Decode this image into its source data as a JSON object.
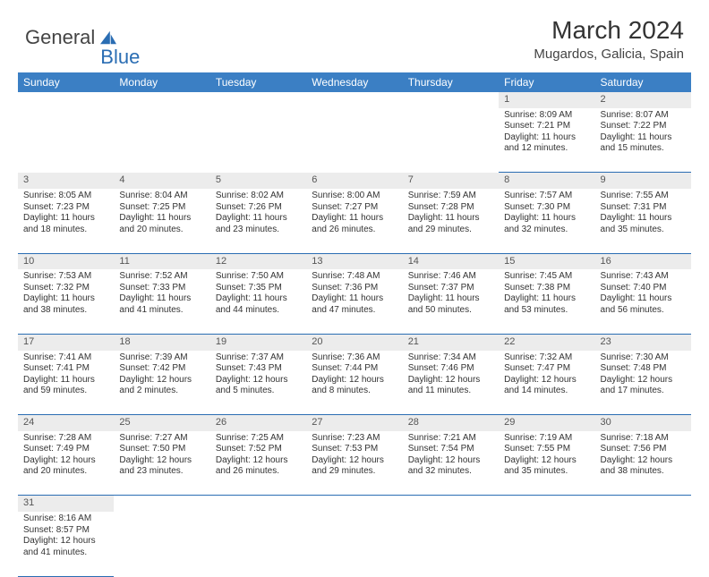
{
  "logo": {
    "text1": "General",
    "text2": "Blue"
  },
  "title": "March 2024",
  "subtitle": "Mugardos, Galicia, Spain",
  "colors": {
    "header_bg": "#3b7fc4",
    "header_text": "#ffffff",
    "daynum_bg": "#ececec",
    "row_border": "#2a6db3",
    "logo_blue": "#2a6db3",
    "body_text": "#333333"
  },
  "weekdays": [
    "Sunday",
    "Monday",
    "Tuesday",
    "Wednesday",
    "Thursday",
    "Friday",
    "Saturday"
  ],
  "weeks": [
    {
      "nums": [
        "",
        "",
        "",
        "",
        "",
        "1",
        "2"
      ],
      "cells": [
        null,
        null,
        null,
        null,
        null,
        {
          "sunrise": "Sunrise: 8:09 AM",
          "sunset": "Sunset: 7:21 PM",
          "daylight": "Daylight: 11 hours and 12 minutes."
        },
        {
          "sunrise": "Sunrise: 8:07 AM",
          "sunset": "Sunset: 7:22 PM",
          "daylight": "Daylight: 11 hours and 15 minutes."
        }
      ]
    },
    {
      "nums": [
        "3",
        "4",
        "5",
        "6",
        "7",
        "8",
        "9"
      ],
      "cells": [
        {
          "sunrise": "Sunrise: 8:05 AM",
          "sunset": "Sunset: 7:23 PM",
          "daylight": "Daylight: 11 hours and 18 minutes."
        },
        {
          "sunrise": "Sunrise: 8:04 AM",
          "sunset": "Sunset: 7:25 PM",
          "daylight": "Daylight: 11 hours and 20 minutes."
        },
        {
          "sunrise": "Sunrise: 8:02 AM",
          "sunset": "Sunset: 7:26 PM",
          "daylight": "Daylight: 11 hours and 23 minutes."
        },
        {
          "sunrise": "Sunrise: 8:00 AM",
          "sunset": "Sunset: 7:27 PM",
          "daylight": "Daylight: 11 hours and 26 minutes."
        },
        {
          "sunrise": "Sunrise: 7:59 AM",
          "sunset": "Sunset: 7:28 PM",
          "daylight": "Daylight: 11 hours and 29 minutes."
        },
        {
          "sunrise": "Sunrise: 7:57 AM",
          "sunset": "Sunset: 7:30 PM",
          "daylight": "Daylight: 11 hours and 32 minutes."
        },
        {
          "sunrise": "Sunrise: 7:55 AM",
          "sunset": "Sunset: 7:31 PM",
          "daylight": "Daylight: 11 hours and 35 minutes."
        }
      ]
    },
    {
      "nums": [
        "10",
        "11",
        "12",
        "13",
        "14",
        "15",
        "16"
      ],
      "cells": [
        {
          "sunrise": "Sunrise: 7:53 AM",
          "sunset": "Sunset: 7:32 PM",
          "daylight": "Daylight: 11 hours and 38 minutes."
        },
        {
          "sunrise": "Sunrise: 7:52 AM",
          "sunset": "Sunset: 7:33 PM",
          "daylight": "Daylight: 11 hours and 41 minutes."
        },
        {
          "sunrise": "Sunrise: 7:50 AM",
          "sunset": "Sunset: 7:35 PM",
          "daylight": "Daylight: 11 hours and 44 minutes."
        },
        {
          "sunrise": "Sunrise: 7:48 AM",
          "sunset": "Sunset: 7:36 PM",
          "daylight": "Daylight: 11 hours and 47 minutes."
        },
        {
          "sunrise": "Sunrise: 7:46 AM",
          "sunset": "Sunset: 7:37 PM",
          "daylight": "Daylight: 11 hours and 50 minutes."
        },
        {
          "sunrise": "Sunrise: 7:45 AM",
          "sunset": "Sunset: 7:38 PM",
          "daylight": "Daylight: 11 hours and 53 minutes."
        },
        {
          "sunrise": "Sunrise: 7:43 AM",
          "sunset": "Sunset: 7:40 PM",
          "daylight": "Daylight: 11 hours and 56 minutes."
        }
      ]
    },
    {
      "nums": [
        "17",
        "18",
        "19",
        "20",
        "21",
        "22",
        "23"
      ],
      "cells": [
        {
          "sunrise": "Sunrise: 7:41 AM",
          "sunset": "Sunset: 7:41 PM",
          "daylight": "Daylight: 11 hours and 59 minutes."
        },
        {
          "sunrise": "Sunrise: 7:39 AM",
          "sunset": "Sunset: 7:42 PM",
          "daylight": "Daylight: 12 hours and 2 minutes."
        },
        {
          "sunrise": "Sunrise: 7:37 AM",
          "sunset": "Sunset: 7:43 PM",
          "daylight": "Daylight: 12 hours and 5 minutes."
        },
        {
          "sunrise": "Sunrise: 7:36 AM",
          "sunset": "Sunset: 7:44 PM",
          "daylight": "Daylight: 12 hours and 8 minutes."
        },
        {
          "sunrise": "Sunrise: 7:34 AM",
          "sunset": "Sunset: 7:46 PM",
          "daylight": "Daylight: 12 hours and 11 minutes."
        },
        {
          "sunrise": "Sunrise: 7:32 AM",
          "sunset": "Sunset: 7:47 PM",
          "daylight": "Daylight: 12 hours and 14 minutes."
        },
        {
          "sunrise": "Sunrise: 7:30 AM",
          "sunset": "Sunset: 7:48 PM",
          "daylight": "Daylight: 12 hours and 17 minutes."
        }
      ]
    },
    {
      "nums": [
        "24",
        "25",
        "26",
        "27",
        "28",
        "29",
        "30"
      ],
      "cells": [
        {
          "sunrise": "Sunrise: 7:28 AM",
          "sunset": "Sunset: 7:49 PM",
          "daylight": "Daylight: 12 hours and 20 minutes."
        },
        {
          "sunrise": "Sunrise: 7:27 AM",
          "sunset": "Sunset: 7:50 PM",
          "daylight": "Daylight: 12 hours and 23 minutes."
        },
        {
          "sunrise": "Sunrise: 7:25 AM",
          "sunset": "Sunset: 7:52 PM",
          "daylight": "Daylight: 12 hours and 26 minutes."
        },
        {
          "sunrise": "Sunrise: 7:23 AM",
          "sunset": "Sunset: 7:53 PM",
          "daylight": "Daylight: 12 hours and 29 minutes."
        },
        {
          "sunrise": "Sunrise: 7:21 AM",
          "sunset": "Sunset: 7:54 PM",
          "daylight": "Daylight: 12 hours and 32 minutes."
        },
        {
          "sunrise": "Sunrise: 7:19 AM",
          "sunset": "Sunset: 7:55 PM",
          "daylight": "Daylight: 12 hours and 35 minutes."
        },
        {
          "sunrise": "Sunrise: 7:18 AM",
          "sunset": "Sunset: 7:56 PM",
          "daylight": "Daylight: 12 hours and 38 minutes."
        }
      ]
    },
    {
      "nums": [
        "31",
        "",
        "",
        "",
        "",
        "",
        ""
      ],
      "cells": [
        {
          "sunrise": "Sunrise: 8:16 AM",
          "sunset": "Sunset: 8:57 PM",
          "daylight": "Daylight: 12 hours and 41 minutes."
        },
        null,
        null,
        null,
        null,
        null,
        null
      ]
    }
  ]
}
